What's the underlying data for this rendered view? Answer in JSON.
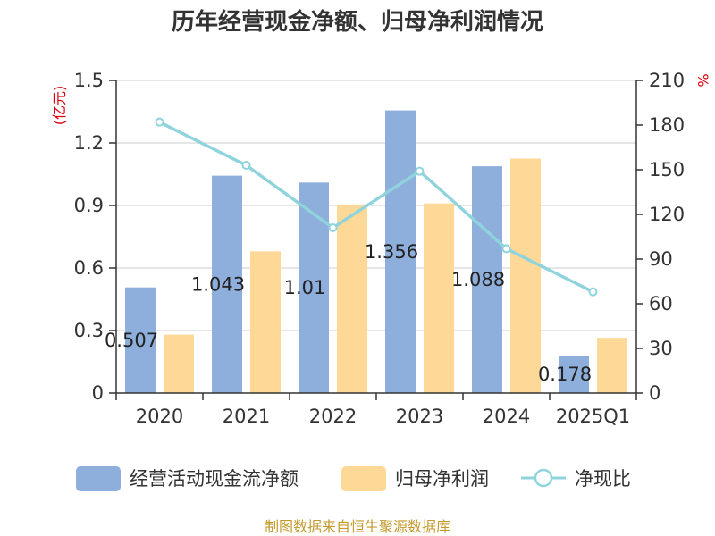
{
  "chart_data": {
    "type": "bar",
    "title": "历年经营现金净额、归母净利润情况",
    "categories": [
      "2020",
      "2021",
      "2022",
      "2023",
      "2024",
      "2025Q1"
    ],
    "series": [
      {
        "name": "经营活动现金流净额",
        "type": "bar",
        "axis": "left",
        "color": "#8eaedb",
        "values": [
          0.507,
          1.043,
          1.01,
          1.356,
          1.088,
          0.178
        ],
        "labels": [
          "0.507",
          "1.043",
          "1.01",
          "1.356",
          "1.088",
          "0.178"
        ]
      },
      {
        "name": "归母净利润",
        "type": "bar",
        "axis": "left",
        "color": "#fed897",
        "values": [
          0.28,
          0.68,
          0.905,
          0.91,
          1.125,
          0.265
        ]
      },
      {
        "name": "净现比",
        "type": "line",
        "axis": "right",
        "color": "#8fd4dd",
        "values": [
          182,
          153,
          111,
          149,
          97,
          68
        ]
      }
    ],
    "y_left": {
      "unit": "(亿元)",
      "min": 0,
      "max": 1.5,
      "ticks": [
        "0",
        "0.3",
        "0.6",
        "0.9",
        "1.2",
        "1.5"
      ]
    },
    "y_right": {
      "unit": "%",
      "min": 0,
      "max": 210,
      "ticks": [
        "0",
        "30",
        "60",
        "90",
        "120",
        "150",
        "180",
        "210"
      ]
    },
    "grid": true,
    "legend_position": "bottom"
  },
  "source": "制图数据来自恒生聚源数据库"
}
